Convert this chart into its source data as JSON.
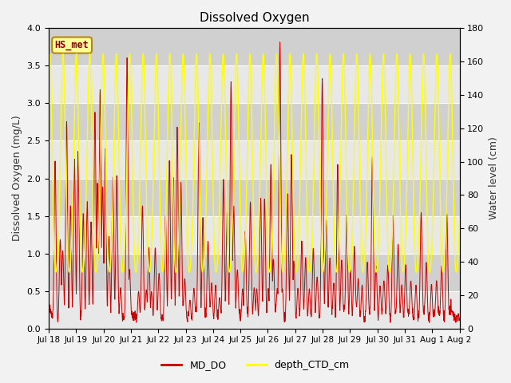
{
  "title": "Dissolved Oxygen",
  "ylabel_left": "Dissolved Oxygen (mg/L)",
  "ylabel_right": "Water level (cm)",
  "ylim_left": [
    0.0,
    4.0
  ],
  "ylim_right": [
    0,
    180
  ],
  "yticks_left": [
    0.0,
    0.5,
    1.0,
    1.5,
    2.0,
    2.5,
    3.0,
    3.5,
    4.0
  ],
  "yticks_right": [
    0,
    20,
    40,
    60,
    80,
    100,
    120,
    140,
    160,
    180
  ],
  "xtick_labels": [
    "Jul 18",
    "Jul 19",
    "Jul 20",
    "Jul 21",
    "Jul 22",
    "Jul 23",
    "Jul 24",
    "Jul 25",
    "Jul 26",
    "Jul 27",
    "Jul 28",
    "Jul 29",
    "Jul 30",
    "Jul 31",
    "Aug 1",
    "Aug 2"
  ],
  "legend_labels": [
    "MD_DO",
    "depth_CTD_cm"
  ],
  "legend_colors": [
    "#cc0000",
    "#ffff00"
  ],
  "annotation_text": "HS_met",
  "annotation_color": "#8b0000",
  "annotation_bg": "#ffff99",
  "annotation_edge": "#b8860b",
  "do_color": "#cc0000",
  "depth_color": "#ffff00",
  "title_fontsize": 11,
  "label_fontsize": 9,
  "band_light": "#e8e8e8",
  "band_dark": "#d0d0d0",
  "fig_bg": "#f2f2f2"
}
